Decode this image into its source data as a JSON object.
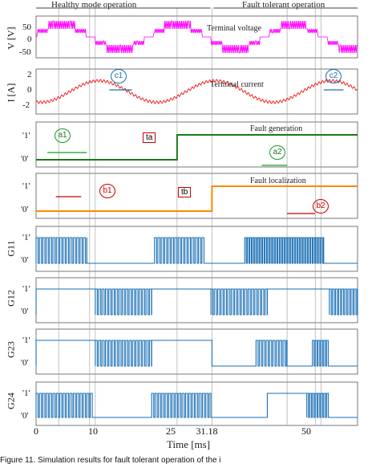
{
  "chart_data": {
    "type": "line",
    "header": {
      "left": "Healthy mode operation",
      "right": "Fault tolerant operation"
    },
    "xlabel": "Time [ms]",
    "xlim": [
      0,
      57
    ],
    "xticks": [
      "0",
      "10",
      "25",
      "31.18",
      "50"
    ],
    "xtick_values": [
      0,
      10,
      25,
      31.18,
      50
    ],
    "events": {
      "ta_ms": 25,
      "tb_ms": 31.18
    },
    "panels": [
      {
        "ylabel": "V [V]",
        "yticks": [
          "50",
          "0",
          "-50"
        ],
        "ylim": [
          -65,
          65
        ],
        "annotation": "Terminal voltage",
        "color": "#ff00ff"
      },
      {
        "ylabel": "I [A]",
        "yticks": [
          "2",
          "0",
          "-2"
        ],
        "ylim": [
          -2.5,
          2.5
        ],
        "annotation": "Terminal current",
        "color": "#ee1111"
      },
      {
        "ylabel": "",
        "yticks": [
          "'1'",
          "'0'"
        ],
        "annotation": "Fault generation",
        "color": "#1a7a1a",
        "step_at_ms": 25
      },
      {
        "ylabel": "",
        "yticks": [
          "'1'",
          "'0'"
        ],
        "annotation": "Fault localization",
        "color": "#ff8800",
        "step_at_ms": 31.18
      },
      {
        "ylabel": "G11",
        "yticks": [
          "'1'",
          "'0'"
        ],
        "color": "#1a6fb5"
      },
      {
        "ylabel": "G12",
        "yticks": [
          "'1'",
          "'0'"
        ],
        "color": "#1a6fb5"
      },
      {
        "ylabel": "G23",
        "yticks": [
          "'1'",
          "'0'"
        ],
        "color": "#1a6fb5"
      },
      {
        "ylabel": "G24",
        "yticks": [
          "'1'",
          "'0'"
        ],
        "color": "#1a6fb5"
      }
    ],
    "markers": {
      "a1": "a1",
      "a2": "a2",
      "b1": "b1",
      "b2": "b2",
      "c1": "c1",
      "c2": "c2",
      "ta": "ta",
      "tb": "tb"
    }
  },
  "caption": "Figure 11. Simulation results for fault tolerant operation of the i"
}
